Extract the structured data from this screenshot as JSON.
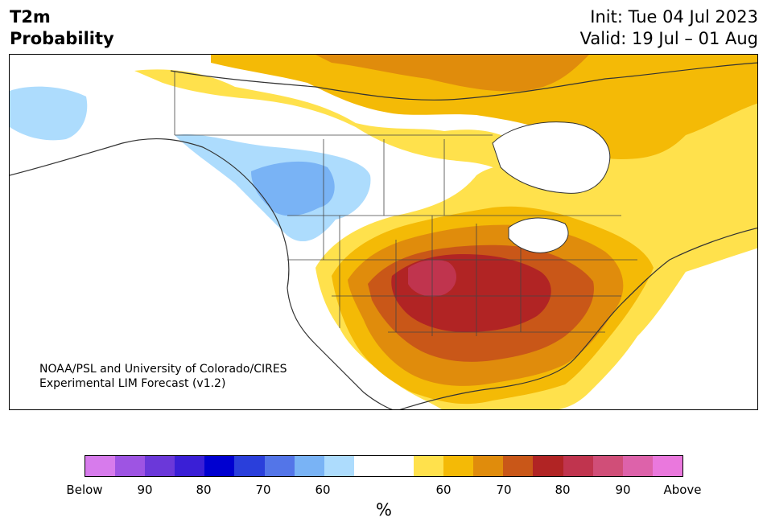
{
  "header": {
    "title_line1": "T2m",
    "title_line2": "Probability",
    "init_text": "Init: Tue 04 Jul 2023",
    "valid_text": "Valid: 19 Jul – 01 Aug"
  },
  "map": {
    "credit_line1": "NOAA/PSL and University of Colorado/CIRES",
    "credit_line2": "Experimental LIM Forecast (v1.2)"
  },
  "colorbar": {
    "units": "%",
    "colors": [
      "#d77bec",
      "#9e54e3",
      "#6b38d9",
      "#3a1fd6",
      "#0000d0",
      "#2a3fdb",
      "#5375e8",
      "#79b3f5",
      "#addcfd",
      "#ffffff",
      "#ffffff",
      "#ffe14c",
      "#f4ba06",
      "#e08c0c",
      "#c95718",
      "#b12424",
      "#c0344e",
      "#d04e78",
      "#dd62aa",
      "#ea78dd"
    ],
    "tick_labels": [
      "Below",
      "90",
      "80",
      "70",
      "60",
      "60",
      "70",
      "80",
      "90",
      "Above"
    ]
  }
}
